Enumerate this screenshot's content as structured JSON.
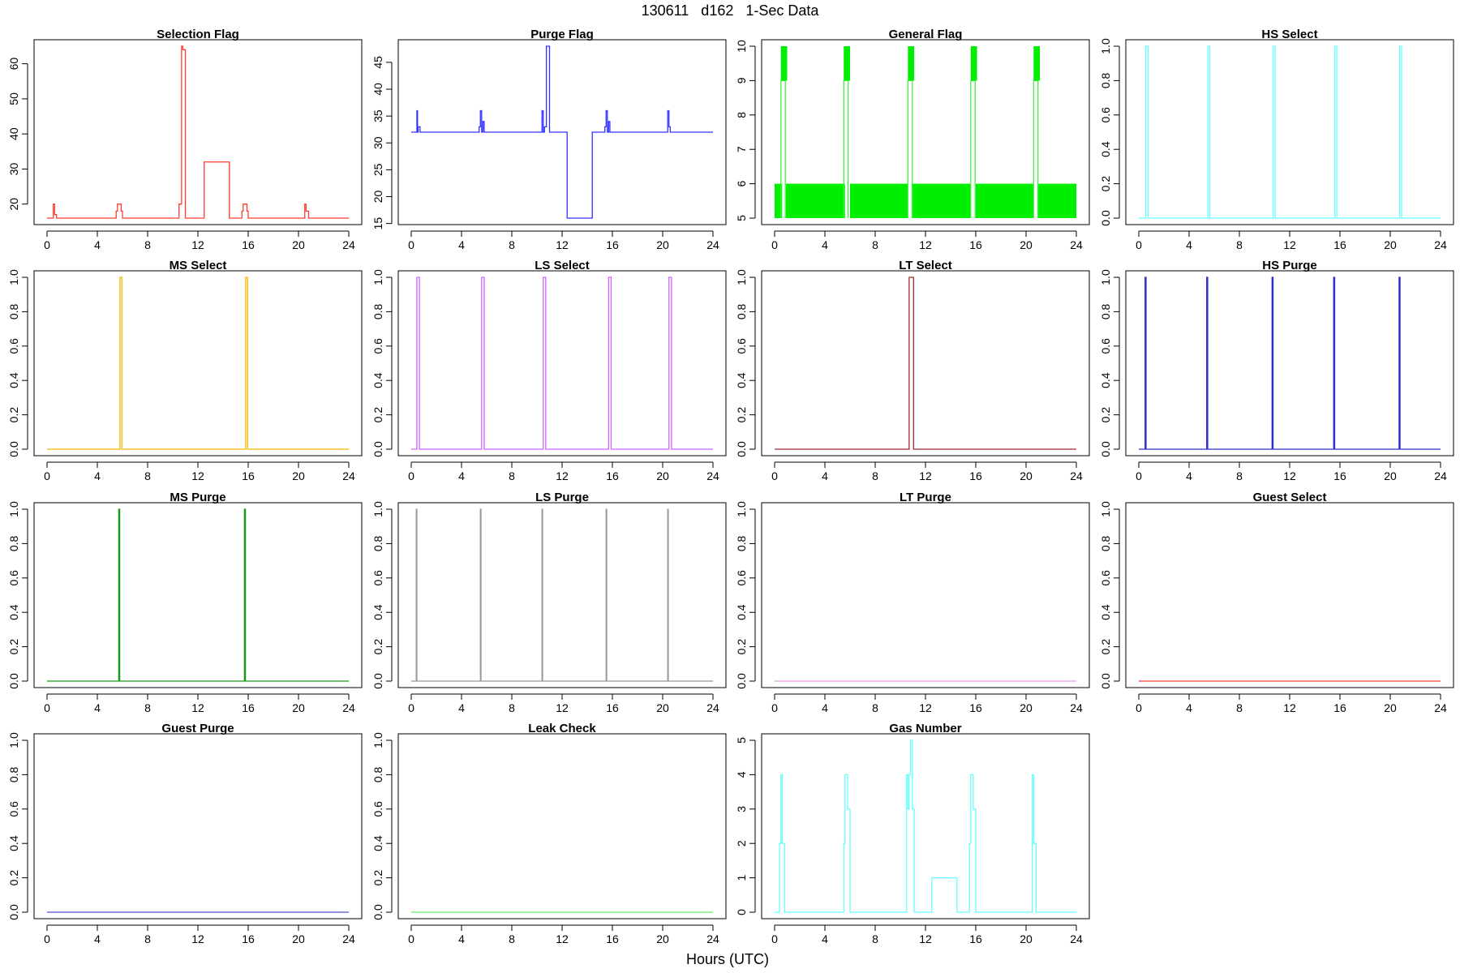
{
  "title": "130611   d162   1-Sec Data",
  "xlabel": "Hours (UTC)",
  "chart_data": [
    {
      "type": "line",
      "title": "Selection Flag",
      "color": "#ff3b30",
      "xlim": [
        0,
        24
      ],
      "ylim": [
        16,
        65
      ],
      "x_ticks": [
        0,
        4,
        8,
        12,
        16,
        20,
        24
      ],
      "y_ticks": [
        20,
        30,
        40,
        50,
        60
      ],
      "x": [
        0,
        0.5,
        0.5,
        0.6,
        0.6,
        0.75,
        0.75,
        5.5,
        5.5,
        5.6,
        5.6,
        5.9,
        5.9,
        6.0,
        6.0,
        10.5,
        10.5,
        10.7,
        10.7,
        10.8,
        10.8,
        11.0,
        11.0,
        12.5,
        12.5,
        14.5,
        14.5,
        15.5,
        15.5,
        15.6,
        15.6,
        15.9,
        15.9,
        16.0,
        16.0,
        20.5,
        20.5,
        20.6,
        20.6,
        20.8,
        20.8,
        24
      ],
      "y": [
        16,
        16,
        20,
        20,
        17,
        17,
        16,
        16,
        18,
        18,
        20,
        20,
        18,
        18,
        16,
        16,
        20,
        20,
        65,
        65,
        64,
        64,
        16,
        16,
        32,
        32,
        16,
        16,
        18,
        18,
        20,
        20,
        18,
        18,
        16,
        16,
        20,
        20,
        18,
        18,
        16,
        16
      ]
    },
    {
      "type": "line",
      "title": "Purge Flag",
      "color": "#3030ff",
      "xlim": [
        0,
        24
      ],
      "ylim": [
        16,
        48
      ],
      "x_ticks": [
        0,
        4,
        8,
        12,
        16,
        20,
        24
      ],
      "y_ticks": [
        15,
        20,
        25,
        30,
        35,
        40,
        45
      ],
      "x": [
        0,
        0.45,
        0.45,
        0.5,
        0.5,
        0.55,
        0.55,
        0.7,
        0.7,
        5.4,
        5.4,
        5.5,
        5.5,
        5.6,
        5.6,
        5.7,
        5.7,
        5.8,
        5.8,
        10.4,
        10.4,
        10.5,
        10.5,
        10.6,
        10.6,
        10.75,
        10.75,
        11.0,
        11.0,
        12.4,
        12.4,
        14.4,
        14.4,
        15.4,
        15.4,
        15.5,
        15.5,
        15.6,
        15.6,
        15.7,
        15.7,
        15.8,
        15.8,
        20.4,
        20.4,
        20.5,
        20.5,
        20.6,
        20.6,
        24
      ],
      "y": [
        32,
        32,
        36,
        36,
        32,
        32,
        33,
        33,
        32,
        32,
        33,
        33,
        36,
        36,
        32,
        32,
        34,
        34,
        32,
        32,
        36,
        36,
        32,
        32,
        33,
        33,
        48,
        48,
        32,
        32,
        16,
        16,
        32,
        32,
        33,
        33,
        36,
        36,
        32,
        32,
        34,
        34,
        32,
        32,
        36,
        36,
        33,
        33,
        32,
        32
      ]
    },
    {
      "type": "line",
      "title": "General Flag",
      "color": "#44ee44",
      "xlim": [
        0,
        24
      ],
      "ylim": [
        5,
        10
      ],
      "x_ticks": [
        0,
        4,
        8,
        12,
        16,
        20,
        24
      ],
      "y_ticks": [
        5,
        6,
        7,
        8,
        9,
        10
      ],
      "band_y": [
        5,
        6
      ],
      "band_segments": [
        [
          0,
          0.6
        ],
        [
          0.9,
          5.6
        ],
        [
          6.0,
          10.6
        ],
        [
          10.9,
          15.6
        ],
        [
          16.0,
          20.6
        ],
        [
          20.9,
          24
        ]
      ],
      "spike_top_y": [
        9,
        10
      ],
      "spike_starts": [
        0.5,
        5.5,
        10.6,
        15.6,
        20.6
      ],
      "spike_width": 0.35,
      "spike_bar_width": 0.5
    },
    {
      "type": "line",
      "title": "HS Select",
      "color": "#66ffff",
      "xlim": [
        0,
        24
      ],
      "ylim": [
        0,
        1
      ],
      "x_ticks": [
        0,
        4,
        8,
        12,
        16,
        20,
        24
      ],
      "y_ticks": [
        0.0,
        0.2,
        0.4,
        0.6,
        0.8,
        1.0
      ],
      "pulses": [
        [
          0.55,
          0.75
        ],
        [
          5.5,
          5.65
        ],
        [
          10.7,
          10.85
        ],
        [
          15.6,
          15.75
        ],
        [
          20.75,
          20.9
        ]
      ]
    },
    {
      "type": "line",
      "title": "MS Select",
      "color": "#f7b500",
      "xlim": [
        0,
        24
      ],
      "ylim": [
        0,
        1
      ],
      "x_ticks": [
        0,
        4,
        8,
        12,
        16,
        20,
        24
      ],
      "y_ticks": [
        0.0,
        0.2,
        0.4,
        0.6,
        0.8,
        1.0
      ],
      "pulses": [
        [
          5.8,
          5.95
        ],
        [
          15.8,
          15.95
        ]
      ]
    },
    {
      "type": "line",
      "title": "LS Select",
      "color": "#cc66ff",
      "xlim": [
        0,
        24
      ],
      "ylim": [
        0,
        1
      ],
      "x_ticks": [
        0,
        4,
        8,
        12,
        16,
        20,
        24
      ],
      "y_ticks": [
        0.0,
        0.2,
        0.4,
        0.6,
        0.8,
        1.0
      ],
      "pulses": [
        [
          0.45,
          0.65
        ],
        [
          5.6,
          5.8
        ],
        [
          10.5,
          10.7
        ],
        [
          15.7,
          15.9
        ],
        [
          20.5,
          20.7
        ]
      ]
    },
    {
      "type": "line",
      "title": "LT Select",
      "color": "#a52a2a",
      "xlim": [
        0,
        24
      ],
      "ylim": [
        0,
        1
      ],
      "x_ticks": [
        0,
        4,
        8,
        12,
        16,
        20,
        24
      ],
      "y_ticks": [
        0.0,
        0.2,
        0.4,
        0.6,
        0.8,
        1.0
      ],
      "pulses": [
        [
          10.7,
          11.05
        ]
      ]
    },
    {
      "type": "line",
      "title": "HS Purge",
      "color": "#3030c8",
      "xlim": [
        0,
        24
      ],
      "ylim": [
        0,
        1
      ],
      "x_ticks": [
        0,
        4,
        8,
        12,
        16,
        20,
        24
      ],
      "y_ticks": [
        0.0,
        0.2,
        0.4,
        0.6,
        0.8,
        1.0
      ],
      "pulses": [
        [
          0.5,
          0.58
        ],
        [
          5.4,
          5.48
        ],
        [
          10.6,
          10.68
        ],
        [
          15.5,
          15.58
        ],
        [
          20.7,
          20.78
        ]
      ]
    },
    {
      "type": "line",
      "title": "MS Purge",
      "color": "#1a9a1a",
      "xlim": [
        0,
        24
      ],
      "ylim": [
        0,
        1
      ],
      "x_ticks": [
        0,
        4,
        8,
        12,
        16,
        20,
        24
      ],
      "y_ticks": [
        0.0,
        0.2,
        0.4,
        0.6,
        0.8,
        1.0
      ],
      "pulses": [
        [
          5.7,
          5.78
        ],
        [
          15.7,
          15.78
        ]
      ]
    },
    {
      "type": "line",
      "title": "LS Purge",
      "color": "#999999",
      "xlim": [
        0,
        24
      ],
      "ylim": [
        0,
        1
      ],
      "x_ticks": [
        0,
        4,
        8,
        12,
        16,
        20,
        24
      ],
      "y_ticks": [
        0.0,
        0.2,
        0.4,
        0.6,
        0.8,
        1.0
      ],
      "pulses": [
        [
          0.4,
          0.45
        ],
        [
          5.5,
          5.55
        ],
        [
          10.4,
          10.45
        ],
        [
          15.5,
          15.55
        ],
        [
          20.4,
          20.45
        ]
      ]
    },
    {
      "type": "line",
      "title": "LT Purge",
      "color": "#ee99ee",
      "xlim": [
        0,
        24
      ],
      "ylim": [
        0,
        1
      ],
      "x_ticks": [
        0,
        4,
        8,
        12,
        16,
        20,
        24
      ],
      "y_ticks": [
        0.0,
        0.2,
        0.4,
        0.6,
        0.8,
        1.0
      ],
      "pulses": []
    },
    {
      "type": "line",
      "title": "Guest Select",
      "color": "#ff3b30",
      "xlim": [
        0,
        24
      ],
      "ylim": [
        0,
        1
      ],
      "x_ticks": [
        0,
        4,
        8,
        12,
        16,
        20,
        24
      ],
      "y_ticks": [
        0.0,
        0.2,
        0.4,
        0.6,
        0.8,
        1.0
      ],
      "pulses": []
    },
    {
      "type": "line",
      "title": "Guest Purge",
      "color": "#5050d0",
      "xlim": [
        0,
        24
      ],
      "ylim": [
        0,
        1
      ],
      "x_ticks": [
        0,
        4,
        8,
        12,
        16,
        20,
        24
      ],
      "y_ticks": [
        0.0,
        0.2,
        0.4,
        0.6,
        0.8,
        1.0
      ],
      "pulses": []
    },
    {
      "type": "line",
      "title": "Leak Check",
      "color": "#66ee66",
      "xlim": [
        0,
        24
      ],
      "ylim": [
        0,
        1
      ],
      "x_ticks": [
        0,
        4,
        8,
        12,
        16,
        20,
        24
      ],
      "y_ticks": [
        0.0,
        0.2,
        0.4,
        0.6,
        0.8,
        1.0
      ],
      "pulses": []
    },
    {
      "type": "line",
      "title": "Gas Number",
      "color": "#66ffff",
      "xlim": [
        0,
        24
      ],
      "ylim": [
        0,
        5
      ],
      "x_ticks": [
        0,
        4,
        8,
        12,
        16,
        20,
        24
      ],
      "y_ticks": [
        0,
        1,
        2,
        3,
        4,
        5
      ],
      "x": [
        0,
        0.4,
        0.4,
        0.5,
        0.5,
        0.6,
        0.6,
        0.7,
        0.7,
        0.8,
        0.8,
        5.5,
        5.5,
        5.6,
        5.6,
        5.8,
        5.8,
        5.9,
        5.9,
        6.0,
        6.0,
        10.5,
        10.5,
        10.6,
        10.6,
        10.7,
        10.7,
        10.8,
        10.8,
        10.95,
        10.95,
        11.1,
        11.1,
        12.5,
        12.5,
        14.5,
        14.5,
        15.5,
        15.5,
        15.6,
        15.6,
        15.8,
        15.8,
        15.9,
        15.9,
        16.0,
        16.0,
        20.5,
        20.5,
        20.6,
        20.6,
        20.7,
        20.7,
        20.8,
        20.8,
        24
      ],
      "y": [
        0,
        0,
        2,
        2,
        4,
        4,
        2,
        2,
        2,
        2,
        0,
        0,
        2,
        2,
        4,
        4,
        3,
        3,
        3,
        3,
        0,
        0,
        4,
        4,
        3,
        3,
        4,
        4,
        5,
        5,
        3,
        3,
        0,
        0,
        1,
        1,
        0,
        0,
        2,
        2,
        4,
        4,
        3,
        3,
        3,
        3,
        0,
        0,
        4,
        4,
        2,
        2,
        2,
        2,
        0,
        0
      ]
    }
  ]
}
